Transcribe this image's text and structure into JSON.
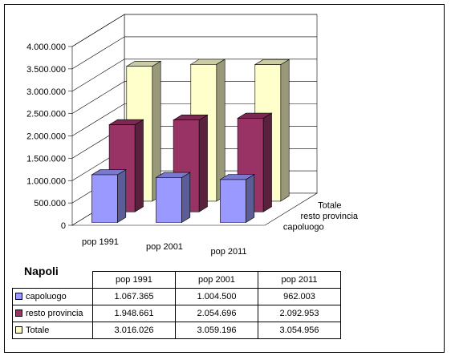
{
  "colors": {
    "capoluogo": "#9999ff",
    "resto_provincia": "#993366",
    "totale": "#ffffcc"
  },
  "chart_data": {
    "type": "bar",
    "categories": [
      "pop 1991",
      "pop 2001",
      "pop 2011"
    ],
    "series": [
      {
        "name": "capoluogo",
        "values": [
          1067365,
          1004500,
          962003
        ]
      },
      {
        "name": "resto provincia",
        "values": [
          1948661,
          2054696,
          2092953
        ]
      },
      {
        "name": "Totale",
        "values": [
          3016026,
          3059196,
          3054956
        ]
      }
    ],
    "yticks": [
      "0",
      "500.000",
      "1.000.000",
      "1.500.000",
      "2.000.000",
      "2.500.000",
      "3.000.000",
      "3.500.000",
      "4.000.000"
    ],
    "ylim": [
      0,
      4000000
    ],
    "grid": true,
    "three_d": true
  },
  "table": {
    "title": "Napoli",
    "headers": [
      "pop 1991",
      "pop 2001",
      "pop 2011"
    ],
    "rows": [
      {
        "label": "capoluogo",
        "values": [
          "1.067.365",
          "1.004.500",
          "962.003"
        ]
      },
      {
        "label": "resto provincia",
        "values": [
          "1.948.661",
          "2.054.696",
          "2.092.953"
        ]
      },
      {
        "label": "Totale",
        "values": [
          "3.016.026",
          "3.059.196",
          "3.054.956"
        ]
      }
    ]
  }
}
